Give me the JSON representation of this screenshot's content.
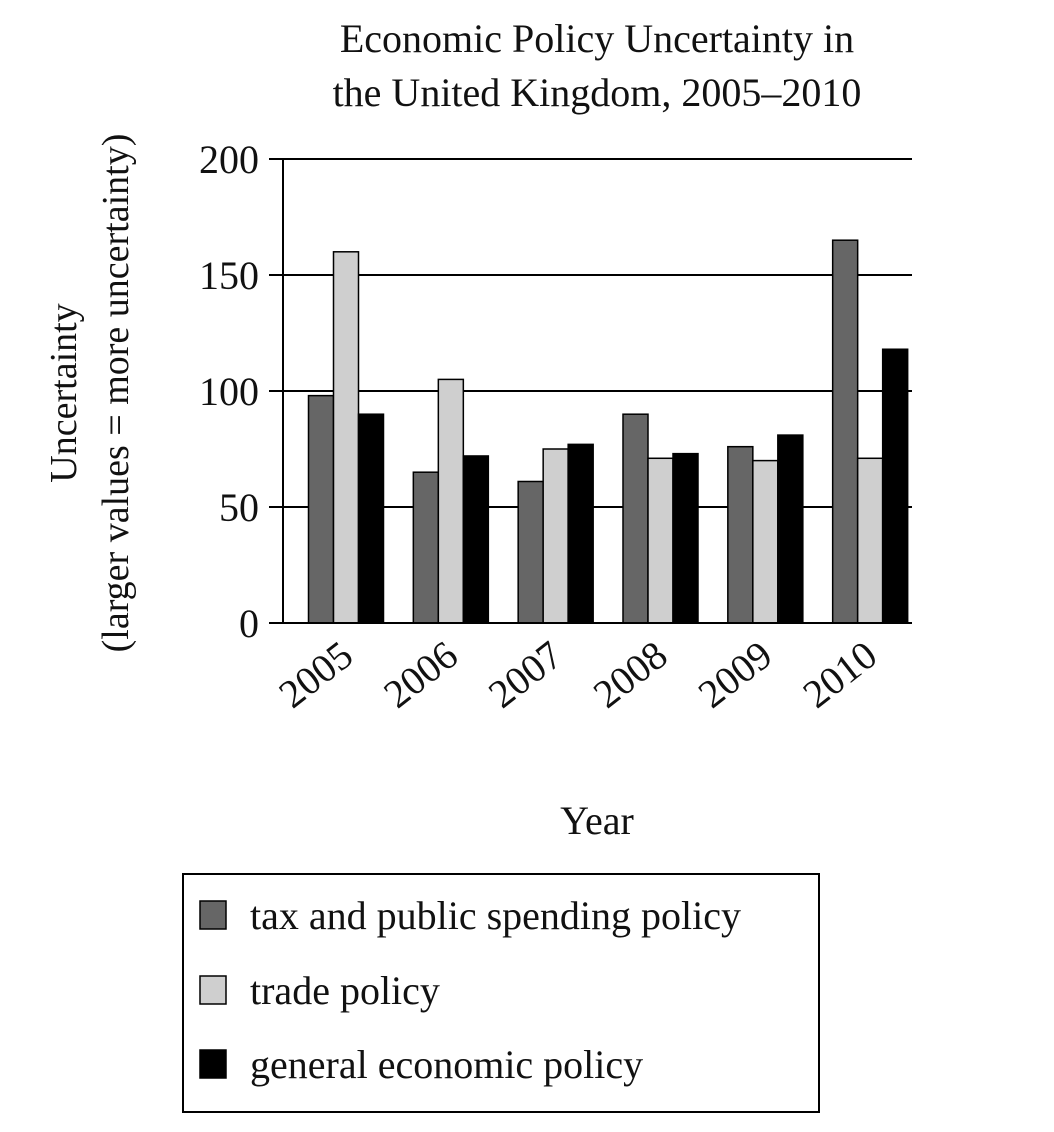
{
  "chart_data": {
    "type": "bar",
    "title_lines": [
      "Economic Policy Uncertainty in",
      "the United Kingdom, 2005–2010"
    ],
    "xlabel": "Year",
    "ylabel_lines": [
      "Uncertainty",
      "(larger values = more uncertainty)"
    ],
    "ylim": [
      0,
      200
    ],
    "yticks": [
      0,
      50,
      100,
      150,
      200
    ],
    "categories": [
      "2005",
      "2006",
      "2007",
      "2008",
      "2009",
      "2010"
    ],
    "series": [
      {
        "name": "tax and public spending policy",
        "color": "#666666",
        "values": [
          98,
          65,
          61,
          90,
          76,
          165
        ]
      },
      {
        "name": "trade policy",
        "color": "#cfcfcf",
        "values": [
          160,
          105,
          75,
          71,
          70,
          71
        ]
      },
      {
        "name": "general economic policy",
        "color": "#000000",
        "values": [
          90,
          72,
          77,
          73,
          81,
          118
        ]
      }
    ],
    "grid": true,
    "legend_position": "bottom"
  }
}
